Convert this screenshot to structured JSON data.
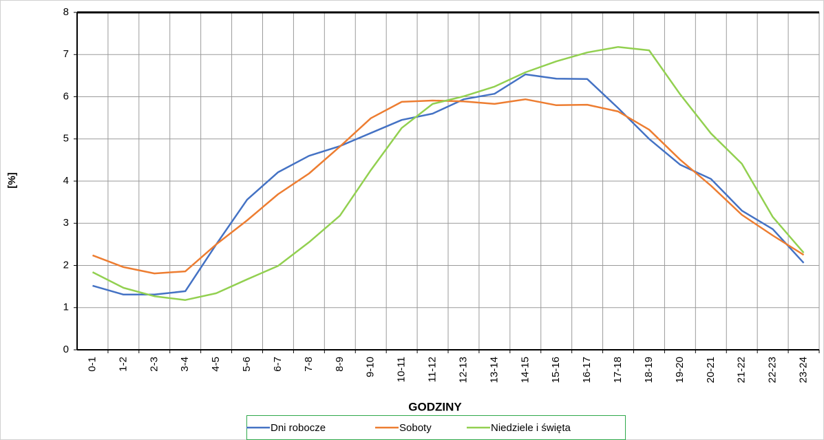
{
  "chart_data": {
    "type": "line",
    "x_label": "GODZINY",
    "y_label": "[%]",
    "categories": [
      "0-1",
      "1-2",
      "2-3",
      "3-4",
      "4-5",
      "5-6",
      "6-7",
      "7-8",
      "8-9",
      "9-10",
      "10-11",
      "11-12",
      "12-13",
      "13-14",
      "14-15",
      "15-16",
      "16-17",
      "17-18",
      "18-19",
      "19-20",
      "20-21",
      "21-22",
      "22-23",
      "23-24"
    ],
    "series": [
      {
        "name": "Dni robocze",
        "color": "#4472c4",
        "values": [
          1.52,
          1.31,
          1.31,
          1.39,
          2.5,
          3.56,
          4.21,
          4.6,
          4.83,
          5.14,
          5.45,
          5.6,
          5.94,
          6.07,
          6.53,
          6.43,
          6.42,
          5.73,
          5.0,
          4.39,
          4.05,
          3.3,
          2.86,
          2.06
        ]
      },
      {
        "name": "Soboty",
        "color": "#ed7d31",
        "values": [
          2.24,
          1.96,
          1.81,
          1.86,
          2.5,
          3.07,
          3.69,
          4.18,
          4.82,
          5.49,
          5.88,
          5.91,
          5.89,
          5.83,
          5.94,
          5.8,
          5.81,
          5.65,
          5.22,
          4.51,
          3.89,
          3.2,
          2.71,
          2.25
        ]
      },
      {
        "name": "Niedziele i święta",
        "color": "#92d050",
        "values": [
          1.84,
          1.47,
          1.27,
          1.18,
          1.34,
          1.67,
          1.99,
          2.55,
          3.18,
          4.26,
          5.26,
          5.83,
          6.01,
          6.24,
          6.58,
          6.84,
          7.05,
          7.18,
          7.1,
          6.06,
          5.13,
          4.41,
          3.15,
          2.3
        ]
      }
    ],
    "ylim": [
      0,
      8
    ],
    "yticks": [
      0,
      1,
      2,
      3,
      4,
      5,
      6,
      7,
      8
    ],
    "grid": true,
    "legend": "bottom"
  }
}
